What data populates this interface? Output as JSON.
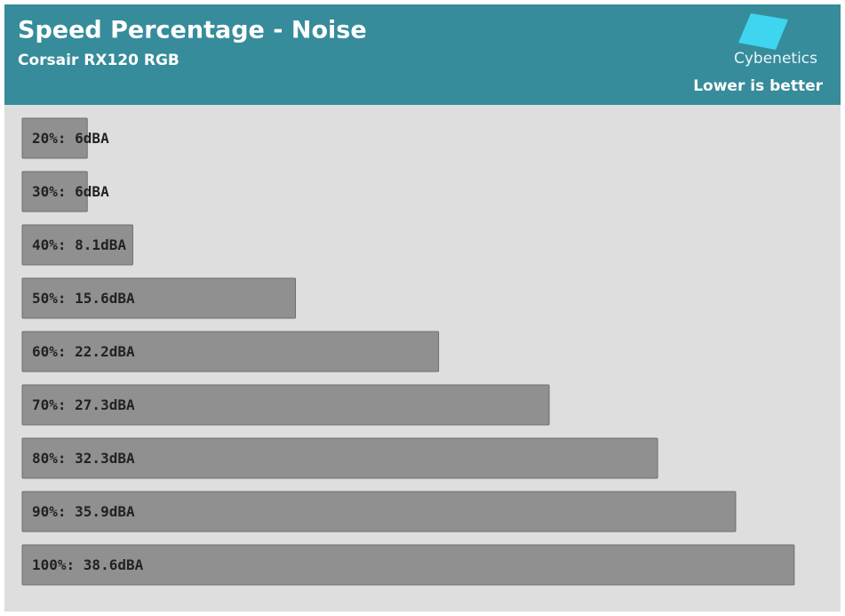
{
  "chart_data": {
    "type": "bar",
    "orientation": "horizontal",
    "title": "Speed Percentage - Noise",
    "subtitle": "Corsair RX120 RGB",
    "note": "Lower is better",
    "brand": "Cybenetics",
    "categories": [
      "20%: 6dBA",
      "30%: 6dBA",
      "40%: 8.1dBA",
      "50%: 15.6dBA",
      "60%: 22.2dBA",
      "70%: 27.3dBA",
      "80%: 32.3dBA",
      "90%: 35.9dBA",
      "100%: 38.6dBA"
    ],
    "values": [
      6,
      6,
      8.1,
      15.6,
      22.2,
      27.3,
      32.3,
      35.9,
      38.6
    ],
    "color": "#909090",
    "xlim": [
      3,
      40
    ]
  }
}
